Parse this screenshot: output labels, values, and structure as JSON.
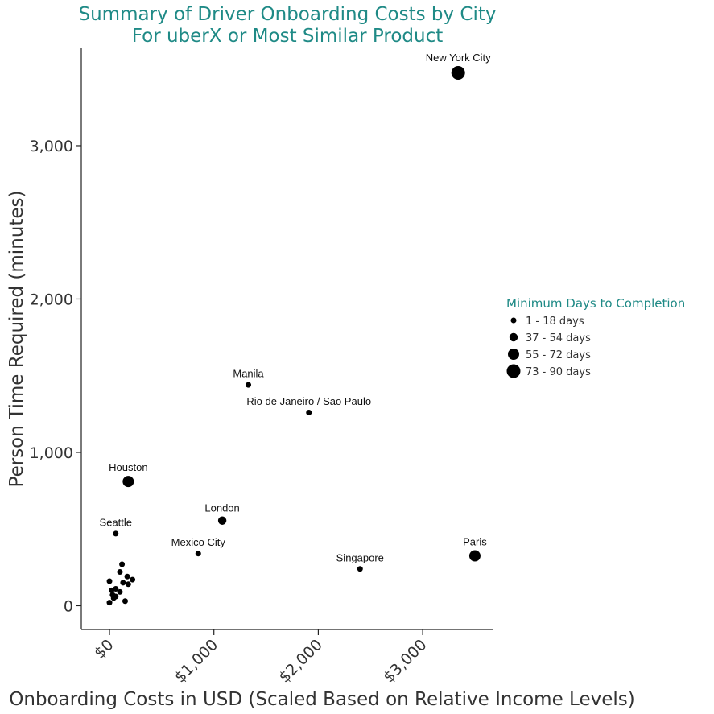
{
  "chart_data": {
    "type": "scatter",
    "title": "Summary of Driver Onboarding Costs by City",
    "subtitle": "For uberX or Most Similar Product",
    "xlabel": "Onboarding Costs in USD (Scaled Based on Relative Income Levels)",
    "ylabel": "Person Time Required (minutes)",
    "xlim": [
      -270,
      3670
    ],
    "ylim": [
      -155,
      3635
    ],
    "x_ticks": [
      0,
      1000,
      2000,
      3000
    ],
    "x_tick_labels": [
      "$0",
      "$1,000",
      "$2,000",
      "$3,000"
    ],
    "y_ticks": [
      0,
      1000,
      2000,
      3000
    ],
    "y_tick_labels": [
      "0",
      "1,000",
      "2,000",
      "3,000"
    ],
    "grid": false,
    "legend": {
      "title": "Minimum Days to Completion",
      "placement": "right",
      "entries": [
        {
          "label": "1 - 18 days",
          "size_class": 1
        },
        {
          "label": "37 - 54 days",
          "size_class": 2
        },
        {
          "label": "55 - 72 days",
          "size_class": 3
        },
        {
          "label": "73 - 90 days",
          "size_class": 4
        }
      ]
    },
    "labeled_points": [
      {
        "label": "New York City",
        "x": 3340,
        "y": 3475,
        "size_class": 4
      },
      {
        "label": "Manila",
        "x": 1330,
        "y": 1440,
        "size_class": 1
      },
      {
        "label": "Rio de Janeiro / Sao Paulo",
        "x": 1910,
        "y": 1260,
        "size_class": 1
      },
      {
        "label": "Houston",
        "x": 180,
        "y": 810,
        "size_class": 3
      },
      {
        "label": "London",
        "x": 1080,
        "y": 555,
        "size_class": 2
      },
      {
        "label": "Seattle",
        "x": 60,
        "y": 470,
        "size_class": 1
      },
      {
        "label": "Mexico City",
        "x": 850,
        "y": 340,
        "size_class": 1
      },
      {
        "label": "Singapore",
        "x": 2400,
        "y": 240,
        "size_class": 1
      },
      {
        "label": "Paris",
        "x": 3500,
        "y": 325,
        "size_class": 3
      }
    ],
    "unlabeled_points": [
      {
        "x": 120,
        "y": 270,
        "size_class": 1
      },
      {
        "x": 100,
        "y": 220,
        "size_class": 1
      },
      {
        "x": 170,
        "y": 190,
        "size_class": 1
      },
      {
        "x": 220,
        "y": 170,
        "size_class": 1
      },
      {
        "x": 0,
        "y": 160,
        "size_class": 1
      },
      {
        "x": 130,
        "y": 150,
        "size_class": 1
      },
      {
        "x": 180,
        "y": 140,
        "size_class": 1
      },
      {
        "x": 60,
        "y": 110,
        "size_class": 1
      },
      {
        "x": 20,
        "y": 100,
        "size_class": 1
      },
      {
        "x": 100,
        "y": 90,
        "size_class": 1
      },
      {
        "x": 30,
        "y": 70,
        "size_class": 1
      },
      {
        "x": 60,
        "y": 60,
        "size_class": 1
      },
      {
        "x": 40,
        "y": 50,
        "size_class": 1
      },
      {
        "x": 150,
        "y": 30,
        "size_class": 1
      },
      {
        "x": 0,
        "y": 20,
        "size_class": 1
      }
    ]
  },
  "colors": {
    "title": "#1f8a86",
    "legend_title": "#1f8a86",
    "points": "#000000",
    "axis": "#222222",
    "text": "#333333"
  }
}
